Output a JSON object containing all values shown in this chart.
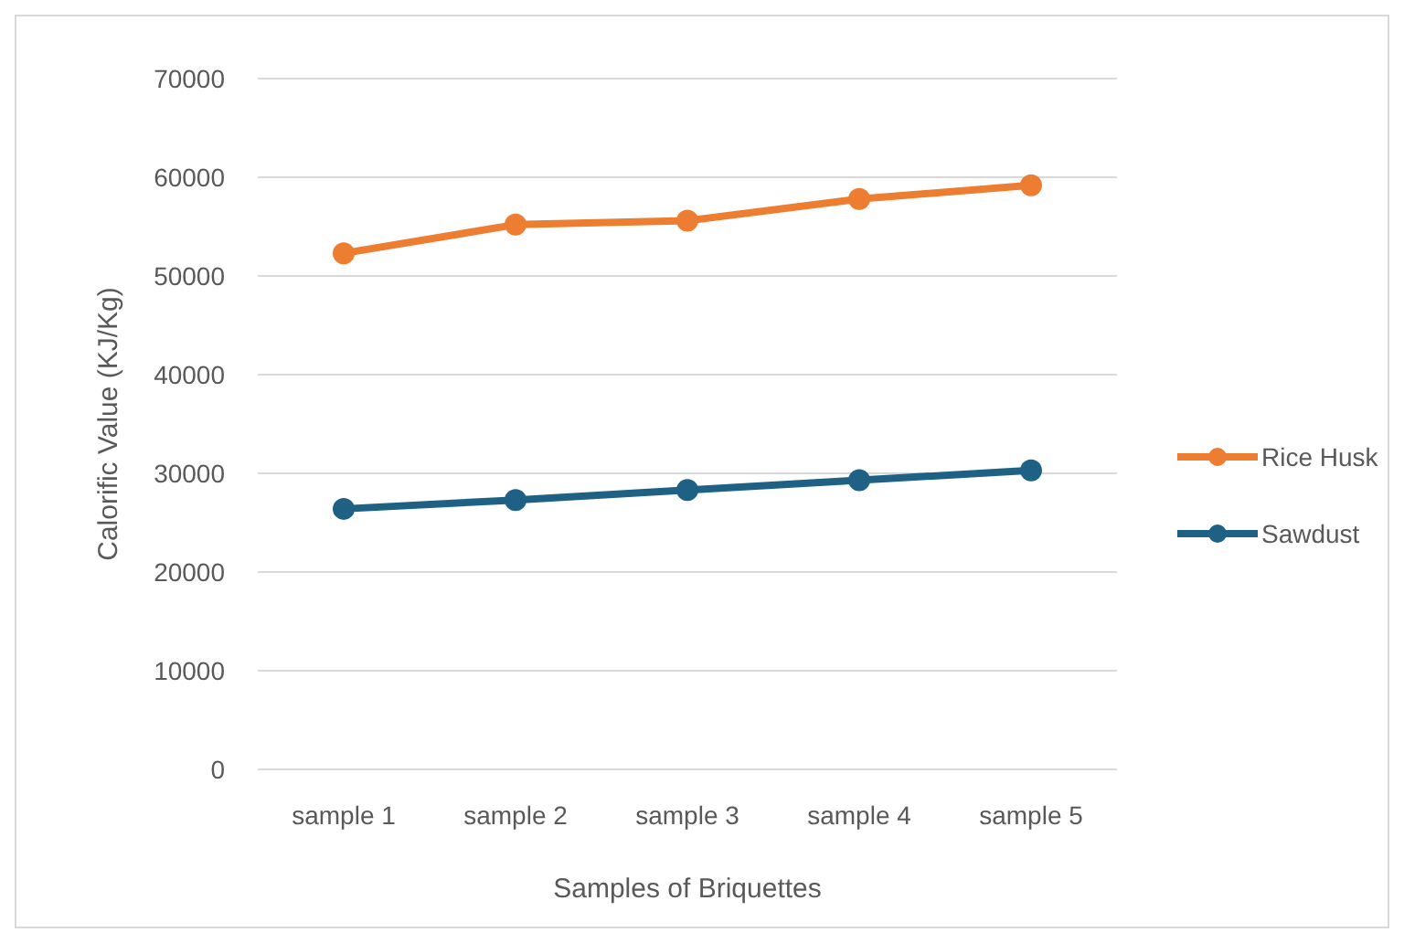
{
  "chart_data": {
    "type": "line",
    "xlabel": "Samples of Briquettes",
    "ylabel": "Calorific Value (KJ/Kg)",
    "categories": [
      "sample 1",
      "sample 2",
      "sample 3",
      "sample 4",
      "sample 5"
    ],
    "series": [
      {
        "name": "Rice Husk",
        "color": "#ed7d31",
        "values": [
          52300,
          55200,
          55600,
          57800,
          59200
        ]
      },
      {
        "name": "Sawdust",
        "color": "#1f6185",
        "values": [
          26400,
          27300,
          28300,
          29300,
          30300
        ]
      }
    ],
    "ylim": [
      0,
      70000
    ],
    "yticks": [
      0,
      10000,
      20000,
      30000,
      40000,
      50000,
      60000,
      70000
    ],
    "grid": "y",
    "legend": "right",
    "marker": "circle",
    "line_style": "solid"
  }
}
